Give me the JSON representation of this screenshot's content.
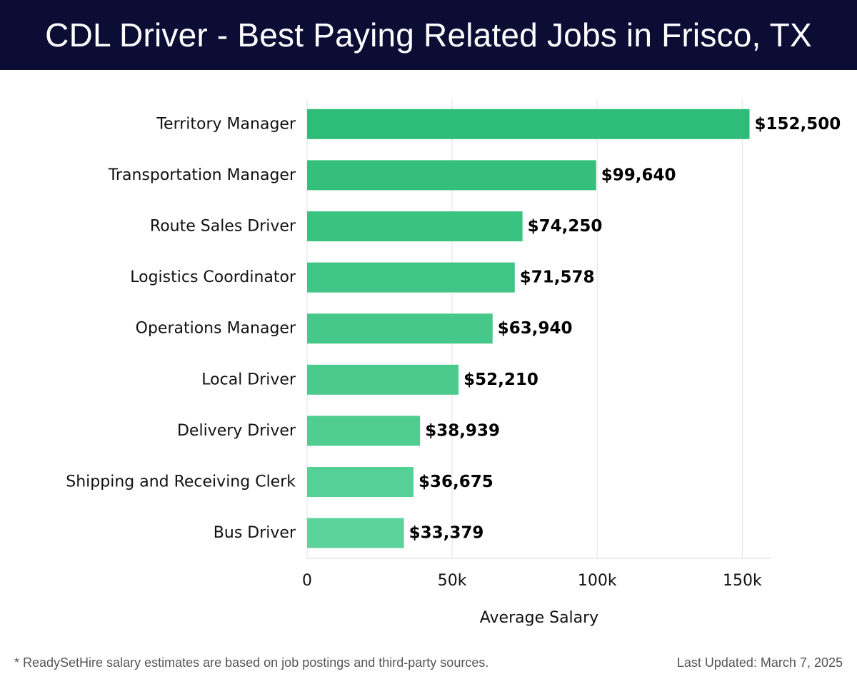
{
  "header": {
    "title": "CDL Driver - Best Paying Related Jobs in Frisco, TX"
  },
  "footer": {
    "note": "* ReadySetHire salary estimates are based on job postings and third-party sources.",
    "updated": "Last Updated: March 7, 2025"
  },
  "colors": {
    "header_bg": "#0b0d35",
    "bar_top": "#2ebd78",
    "bar_base": "#4ec98d",
    "bar_light": "#5bd39a",
    "grid": "#e3e3e3"
  },
  "chart_data": {
    "type": "bar",
    "orientation": "horizontal",
    "title": "CDL Driver - Best Paying Related Jobs in Frisco, TX",
    "xlabel": "Average Salary",
    "ylabel": "",
    "xlim": [
      0,
      160000
    ],
    "grid": true,
    "xticks": [
      {
        "value": 0,
        "label": "0"
      },
      {
        "value": 50000,
        "label": "50k"
      },
      {
        "value": 100000,
        "label": "100k"
      },
      {
        "value": 150000,
        "label": "150k"
      }
    ],
    "categories": [
      "Territory Manager",
      "Transportation Manager",
      "Route Sales Driver",
      "Logistics Coordinator",
      "Operations Manager",
      "Local Driver",
      "Delivery Driver",
      "Shipping and Receiving Clerk",
      "Bus Driver"
    ],
    "values": [
      152500,
      99640,
      74250,
      71578,
      63940,
      52210,
      38939,
      36675,
      33379
    ],
    "value_labels": [
      "$152,500",
      "$99,640",
      "$74,250",
      "$71,578",
      "$63,940",
      "$52,210",
      "$38,939",
      "$36,675",
      "$33,379"
    ]
  }
}
